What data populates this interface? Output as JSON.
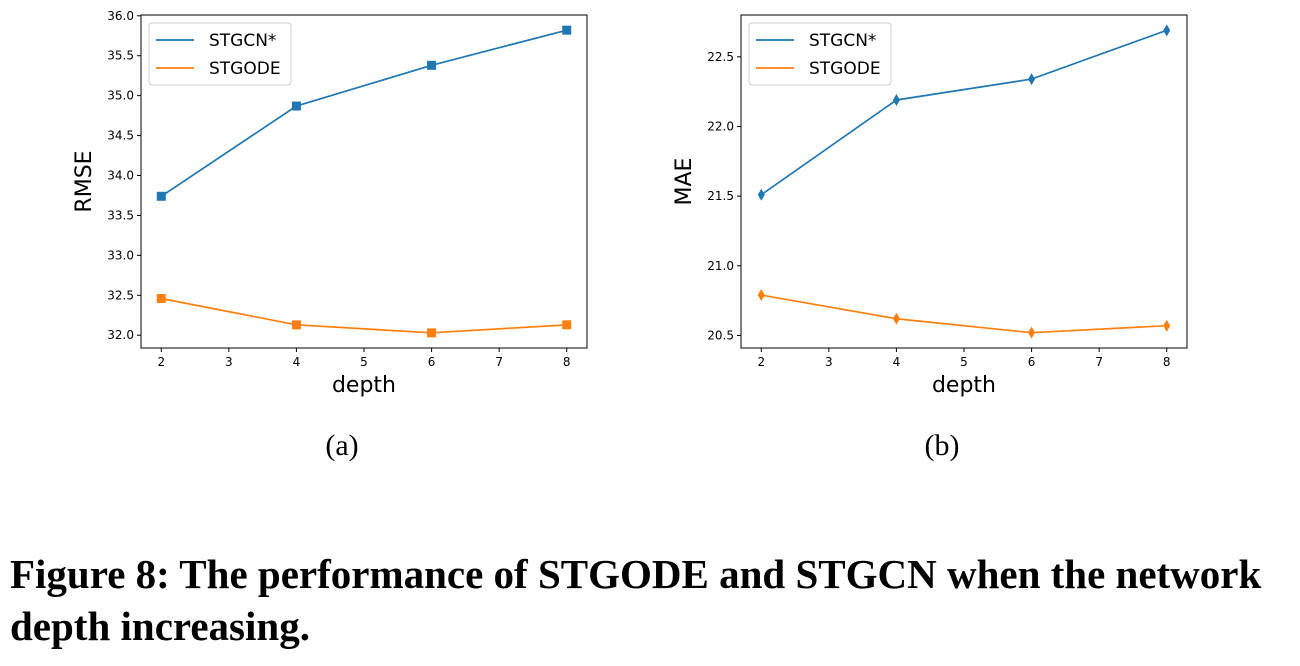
{
  "chart_data": [
    {
      "type": "line",
      "subcaption": "(a)",
      "xlabel": "depth",
      "ylabel": "RMSE",
      "x": [
        2,
        4,
        6,
        8
      ],
      "xticks": [
        "2",
        "3",
        "4",
        "5",
        "6",
        "7",
        "8"
      ],
      "xlim": [
        1.7,
        8.3
      ],
      "yticks": [
        "32.0",
        "32.5",
        "33.0",
        "33.5",
        "34.0",
        "34.5",
        "35.0",
        "35.5",
        "36.0"
      ],
      "ylim": [
        31.84,
        36.01
      ],
      "marker": "square",
      "legend": "top-left",
      "grid": false,
      "series": [
        {
          "name": "STGCN*",
          "color": "#1f77b4",
          "values": [
            33.74,
            34.87,
            35.38,
            35.82
          ]
        },
        {
          "name": "STGODE",
          "color": "#ff7f0e",
          "values": [
            32.46,
            32.13,
            32.03,
            32.13
          ]
        }
      ]
    },
    {
      "type": "line",
      "subcaption": "(b)",
      "xlabel": "depth",
      "ylabel": "MAE",
      "x": [
        2,
        4,
        6,
        8
      ],
      "xticks": [
        "2",
        "3",
        "4",
        "5",
        "6",
        "7",
        "8"
      ],
      "xlim": [
        1.7,
        8.3
      ],
      "yticks": [
        "20.5",
        "21.0",
        "21.5",
        "22.0",
        "22.5"
      ],
      "ylim": [
        20.41,
        22.8
      ],
      "marker": "thin-diamond",
      "legend": "top-left",
      "grid": false,
      "series": [
        {
          "name": "STGCN*",
          "color": "#1f77b4",
          "values": [
            21.51,
            22.19,
            22.34,
            22.69
          ]
        },
        {
          "name": "STGODE",
          "color": "#ff7f0e",
          "values": [
            20.79,
            20.62,
            20.52,
            20.57
          ]
        }
      ]
    }
  ],
  "caption": "Figure 8: The performance of STGODE and STGCN when the network depth increasing."
}
